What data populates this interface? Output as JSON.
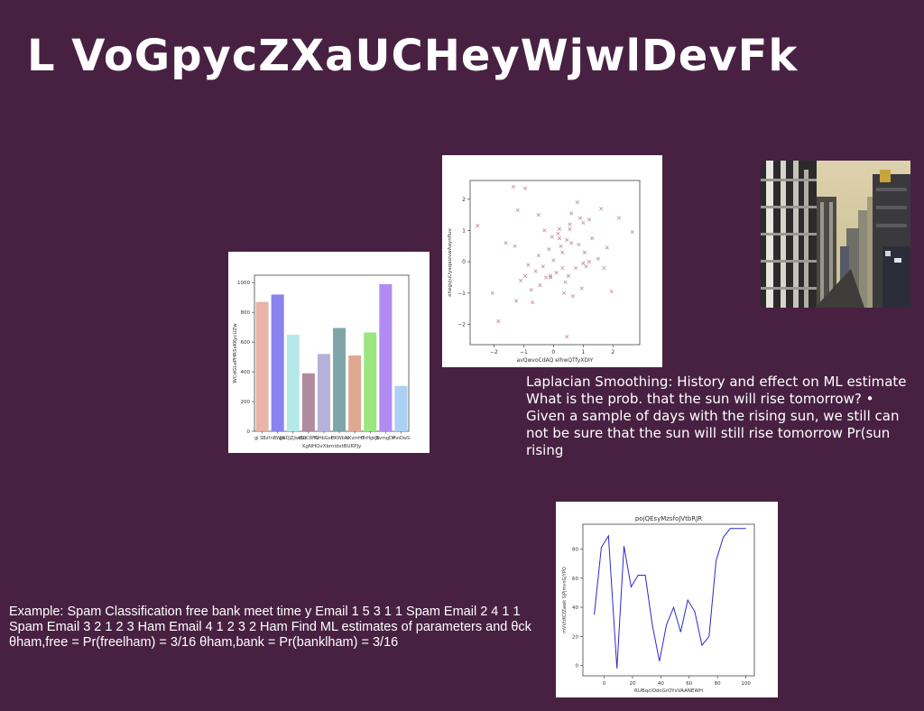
{
  "slide": {
    "title": "L  VoGpycZXaUCHeyWjwlDevFk",
    "caption": "Laplacian Smoothing: History and effect on ML estimate What is the prob. that the sun will rise tomorrow? • Given a sample of days with the rising sun, we still can not be sure that the sun will still rise tomorrow Pr(sun rising",
    "example": "Example: Spam Classification free bank meet time y Email 1 5 3 1 1 Spam Email 2 4 1 1 Spam Email 3 2 1 2 3 Ham Email 4 1 2 3 2 Ham Find ML estimates of parameters and θck θham,free = Pr(freelham) = 3/16 θham,bank = Pr(banklham) = 3/16"
  },
  "chart_data": [
    {
      "type": "bar",
      "title": "",
      "xlabel": "XgNHQvXbmidxtBUKPJy",
      "ylabel": "WCdGLePHRSsKKycUZw",
      "categories": [
        "gi SBzf",
        "nBWJx",
        "pNQjZJwebz",
        "IEDCRFG",
        "lNHbGoC",
        "HKWbn",
        "NKvmHT",
        "nnHgkJx",
        "EvmgDP",
        "rhnDwS"
      ],
      "values": [
        870,
        920,
        650,
        390,
        520,
        695,
        510,
        665,
        990,
        305
      ],
      "colors": [
        "#e8b3a8",
        "#8a82ee",
        "#b5e8e8",
        "#b08aa0",
        "#b6b1d8",
        "#7ea6a8",
        "#e0a890",
        "#9be680",
        "#b18af2",
        "#aad0f4"
      ],
      "ylim": [
        0,
        1050
      ],
      "yticks": [
        0,
        200,
        400,
        600,
        800,
        1000
      ]
    },
    {
      "type": "scatter",
      "title": "",
      "xlabel": "avQwvoCdAQ elhwQTfyXDIY",
      "ylabel": "ehegvjuUyaqaizvwAaynfluv",
      "xlim": [
        -2.8,
        2.9
      ],
      "ylim": [
        -2.65,
        2.6
      ],
      "xticks": [
        -2,
        -1,
        0,
        1,
        2
      ],
      "yticks": [
        -2,
        -1,
        0,
        1,
        2
      ],
      "color": "#c08aa6",
      "x": [
        -1.35,
        -0.95,
        0.8,
        -2.55,
        -1.2,
        0.45,
        1.2,
        2.2,
        2.65,
        -0.5,
        -0.3,
        0.2,
        0.55,
        0.3,
        0.9,
        1.6,
        1.8,
        1.3,
        0.15,
        -0.05,
        0.6,
        1.05,
        -0.15,
        -0.85,
        -1.6,
        0.3,
        0.5,
        0.75,
        1.0,
        1.5,
        -1.85,
        -2.05,
        -1.25,
        -0.75,
        -0.45,
        -0.6,
        -0.1,
        0.1,
        0.4,
        0.95,
        1.2,
        1.7,
        1.95,
        0.65,
        0.35,
        -0.25,
        -0.35,
        -1.1,
        -0.95,
        -0.7,
        0.85,
        1.0,
        0.6,
        0.25,
        -0.5,
        0.0,
        0.45,
        1.1,
        -1.3,
        0.2,
        -0.1,
        0.55
      ],
      "y": [
        2.4,
        2.35,
        1.9,
        1.15,
        1.65,
        -2.4,
        1.35,
        1.4,
        0.95,
        1.5,
        1.0,
        1.05,
        1.2,
        0.3,
        1.4,
        1.7,
        0.45,
        0.75,
        0.9,
        0.8,
        0.6,
        0.3,
        0.4,
        -0.1,
        0.6,
        -0.2,
        -0.45,
        -0.2,
        -0.05,
        0.1,
        -1.9,
        -1.0,
        -1.25,
        -0.9,
        -0.75,
        -0.3,
        -0.5,
        -0.35,
        -0.65,
        -0.85,
        0.0,
        -0.2,
        -0.95,
        -1.1,
        -1.0,
        -0.5,
        -0.15,
        -0.6,
        -0.45,
        -1.3,
        0.55,
        1.25,
        1.55,
        0.5,
        0.2,
        0.05,
        0.7,
        -0.15,
        0.5,
        0.75,
        -0.45,
        1.05
      ]
    },
    {
      "type": "line",
      "title": "pojQEsyMzsfoJVtbRJR",
      "xlabel": "RUBqclOdcGrOYvVAANEWH",
      "ylabel": "mVVtiKCfZawk SjPjmvnGjYPO",
      "xlim": [
        -15,
        106
      ],
      "ylim": [
        -7,
        97
      ],
      "xticks": [
        0,
        20,
        40,
        60,
        80,
        100
      ],
      "yticks": [
        0,
        20,
        40,
        60,
        80
      ],
      "color": "#2a2acc",
      "x": [
        -7,
        -2,
        3,
        9,
        14,
        19,
        24,
        29,
        34,
        39,
        44,
        49,
        54,
        59,
        64,
        69,
        74,
        79,
        84,
        89,
        94,
        100
      ],
      "y": [
        35,
        81,
        89,
        -2,
        82,
        54,
        62,
        62,
        28,
        3,
        28,
        40,
        23,
        45,
        37,
        14,
        20,
        72,
        88,
        94,
        94,
        94
      ]
    }
  ]
}
